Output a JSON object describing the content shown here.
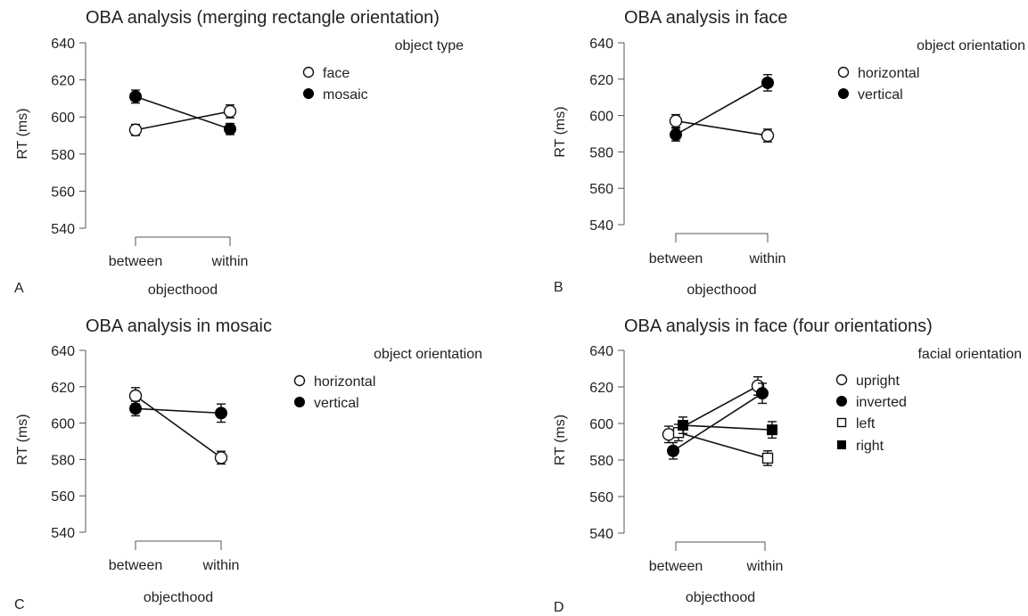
{
  "chart_data": [
    {
      "panel": "A",
      "type": "line",
      "title": "OBA analysis (merging rectangle orientation)",
      "xlabel": "objecthood",
      "ylabel": "RT (ms)",
      "categories": [
        "between",
        "within"
      ],
      "ylim": [
        540,
        640
      ],
      "yticks": [
        540,
        560,
        580,
        600,
        620,
        640
      ],
      "grid": false,
      "legend_title": "object type",
      "legend_position": "right",
      "series": [
        {
          "name": "face",
          "marker": "circle-open",
          "values": [
            593,
            603
          ],
          "errors": [
            3,
            3.5
          ]
        },
        {
          "name": "mosaic",
          "marker": "circle-filled",
          "values": [
            611,
            593.5
          ],
          "errors": [
            3.5,
            3
          ]
        }
      ]
    },
    {
      "panel": "B",
      "type": "line",
      "title": "OBA analysis in face",
      "xlabel": "objecthood",
      "ylabel": "RT (ms)",
      "categories": [
        "between",
        "within"
      ],
      "ylim": [
        540,
        640
      ],
      "yticks": [
        540,
        560,
        580,
        600,
        620,
        640
      ],
      "grid": false,
      "legend_title": "object orientation",
      "legend_position": "right",
      "series": [
        {
          "name": "horizontal",
          "marker": "circle-open",
          "values": [
            597,
            589
          ],
          "errors": [
            3.5,
            3.5
          ]
        },
        {
          "name": "vertical",
          "marker": "circle-filled",
          "values": [
            589.5,
            618
          ],
          "errors": [
            3.5,
            4.5
          ]
        }
      ]
    },
    {
      "panel": "C",
      "type": "line",
      "title": "OBA analysis in mosaic",
      "xlabel": "objecthood",
      "ylabel": "RT (ms)",
      "categories": [
        "between",
        "within"
      ],
      "ylim": [
        540,
        640
      ],
      "yticks": [
        540,
        560,
        580,
        600,
        620,
        640
      ],
      "grid": false,
      "legend_title": "object orientation",
      "legend_position": "right",
      "series": [
        {
          "name": "horizontal",
          "marker": "circle-open",
          "values": [
            615,
            581
          ],
          "errors": [
            4.5,
            3.5
          ]
        },
        {
          "name": "vertical",
          "marker": "circle-filled",
          "values": [
            608,
            605.5
          ],
          "errors": [
            4,
            5
          ]
        }
      ]
    },
    {
      "panel": "D",
      "type": "line",
      "title": "OBA analysis in face (four orientations)",
      "xlabel": "objecthood",
      "ylabel": "RT (ms)",
      "categories": [
        "between",
        "within"
      ],
      "ylim": [
        540,
        640
      ],
      "yticks": [
        540,
        560,
        580,
        600,
        620,
        640
      ],
      "grid": false,
      "legend_title": "facial orientation",
      "legend_position": "right",
      "series": [
        {
          "name": "upright",
          "marker": "circle-open",
          "values": [
            594,
            620.5
          ],
          "errors": [
            4.5,
            5
          ]
        },
        {
          "name": "inverted",
          "marker": "circle-filled",
          "values": [
            585,
            616.5
          ],
          "errors": [
            4.5,
            5.5
          ]
        },
        {
          "name": "left",
          "marker": "square-open",
          "values": [
            595,
            581
          ],
          "errors": [
            4.5,
            4
          ]
        },
        {
          "name": "right",
          "marker": "square-filled",
          "values": [
            599,
            596.5
          ],
          "errors": [
            4.5,
            4.5
          ]
        }
      ]
    }
  ]
}
